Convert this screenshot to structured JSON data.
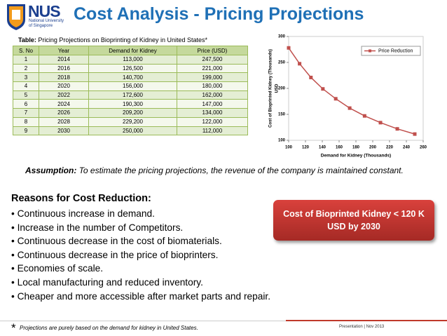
{
  "header": {
    "logo_text": "NUS",
    "logo_subtext": [
      "National University",
      "of Singapore"
    ],
    "title": "Cost Analysis - Pricing Projections"
  },
  "table": {
    "caption_label": "Table:",
    "caption": "Pricing Projections on Bioprinting of Kidney in United States*",
    "columns": [
      "S. No",
      "Year",
      "Demand for Kidney",
      "Price (USD)"
    ],
    "rows": [
      [
        "1",
        "2014",
        "113,000",
        "247,500"
      ],
      [
        "2",
        "2016",
        "126,500",
        "221,000"
      ],
      [
        "3",
        "2018",
        "140,700",
        "199,000"
      ],
      [
        "4",
        "2020",
        "156,000",
        "180,000"
      ],
      [
        "5",
        "2022",
        "172,600",
        "162,000"
      ],
      [
        "6",
        "2024",
        "190,300",
        "147,000"
      ],
      [
        "7",
        "2026",
        "209,200",
        "134,000"
      ],
      [
        "8",
        "2028",
        "229,200",
        "122,000"
      ],
      [
        "9",
        "2030",
        "250,000",
        "112,000"
      ]
    ]
  },
  "chart_data": {
    "type": "line",
    "xlabel": "Demand for Kidney (Thousands)",
    "ylabel": [
      "Cost of Bioprinted Kidney (Thousands)",
      "USD"
    ],
    "x": [
      100,
      113,
      126.5,
      140.7,
      156,
      172.6,
      190.3,
      209.2,
      229.2,
      250
    ],
    "series": [
      {
        "name": "Price Reduction",
        "color": "#c0504d",
        "values": [
          278,
          247.5,
          221,
          199,
          180,
          162,
          147,
          134,
          122,
          112
        ]
      }
    ],
    "xlim": [
      100,
      260
    ],
    "xticks": [
      100,
      120,
      140,
      160,
      180,
      200,
      220,
      240,
      260
    ],
    "ylim": [
      100,
      300
    ],
    "yticks": [
      100,
      150,
      200,
      250,
      300
    ],
    "grid": false,
    "legend": "upper right"
  },
  "assumption": {
    "label": "Assumption:",
    "text": "To estimate the pricing projections, the revenue of the company is maintained constant."
  },
  "reasons": {
    "heading": "Reasons for Cost Reduction:",
    "items": [
      "Continuous increase in demand.",
      "Increase in the number of Competitors.",
      "Continuous decrease in the cost of biomaterials.",
      "Continuous decrease in the price of bioprinters.",
      "Economies of scale.",
      "Local manufacturing and reduced inventory.",
      "Cheaper and more accessible after market parts and repair."
    ]
  },
  "callout": "Cost of Bioprinted Kidney < 120 K USD by 2030",
  "footer": {
    "star": "*",
    "note": "Projections are purely based on the demand for kidney in United States.",
    "presentation": "Presentation | Nov 2013"
  }
}
